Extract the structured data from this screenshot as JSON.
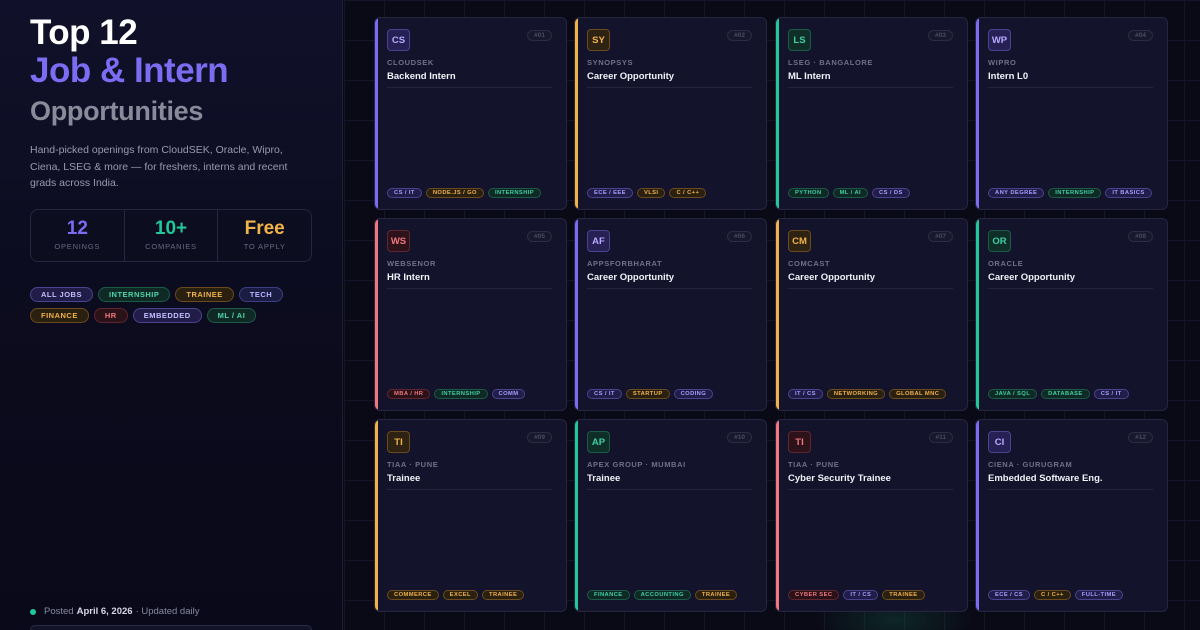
{
  "header": {
    "title_line1": "Top 12",
    "title_line2": "Job & Intern",
    "title_line3": "Opportunities",
    "description": "Hand-picked openings from CloudSEK, Oracle, Wipro, Ciena, LSEG & more — for freshers, interns and recent grads across India."
  },
  "stats": [
    {
      "value": "12",
      "label": "OPENINGS",
      "color": "#7c6cf2"
    },
    {
      "value": "10+",
      "label": "COMPANIES",
      "color": "#22c79a"
    },
    {
      "value": "Free",
      "label": "TO APPLY",
      "color": "#f2b24a"
    }
  ],
  "filters": [
    {
      "label": "ALL JOBS",
      "style": "purple"
    },
    {
      "label": "INTERNSHIP",
      "style": "green"
    },
    {
      "label": "TRAINEE",
      "style": "orange"
    },
    {
      "label": "TECH",
      "style": "blue"
    },
    {
      "label": "FINANCE",
      "style": "orange"
    },
    {
      "label": "HR",
      "style": "red"
    },
    {
      "label": "EMBEDDED",
      "style": "purple"
    },
    {
      "label": "ML / AI",
      "style": "green"
    }
  ],
  "footer": {
    "posted_prefix": "Posted",
    "posted_date": "April 6, 2026",
    "posted_suffix": "· Updated daily"
  },
  "colors": {
    "purple": "#7c6cf2",
    "orange": "#f2b24a",
    "green": "#22c79a",
    "red": "#f0787e"
  },
  "jobs": [
    {
      "badge": "CS",
      "num": "#01",
      "company": "CLOUDSEK",
      "role": "Backend Intern",
      "accent": "purple",
      "tags": [
        {
          "t": "CS / IT",
          "s": "purple"
        },
        {
          "t": "NODE.JS / GO",
          "s": "orange"
        },
        {
          "t": "INTERNSHIP",
          "s": "green"
        }
      ]
    },
    {
      "badge": "SY",
      "num": "#02",
      "company": "SYNOPSYS",
      "role": "Career Opportunity",
      "accent": "orange",
      "tags": [
        {
          "t": "ECE / EEE",
          "s": "purple"
        },
        {
          "t": "VLSI",
          "s": "orange"
        },
        {
          "t": "C / C++",
          "s": "orange"
        }
      ]
    },
    {
      "badge": "LS",
      "num": "#03",
      "company": "LSEG · BANGALORE",
      "role": "ML Intern",
      "accent": "green",
      "tags": [
        {
          "t": "PYTHON",
          "s": "green"
        },
        {
          "t": "ML / AI",
          "s": "green"
        },
        {
          "t": "CS / DS",
          "s": "purple"
        }
      ]
    },
    {
      "badge": "WP",
      "num": "#04",
      "company": "WIPRO",
      "role": "Intern L0",
      "accent": "purple",
      "tags": [
        {
          "t": "ANY DEGREE",
          "s": "purple"
        },
        {
          "t": "INTERNSHIP",
          "s": "green"
        },
        {
          "t": "IT BASICS",
          "s": "purple"
        }
      ]
    },
    {
      "badge": "WS",
      "num": "#05",
      "company": "WEBSENOR",
      "role": "HR Intern",
      "accent": "red",
      "tags": [
        {
          "t": "MBA / HR",
          "s": "red"
        },
        {
          "t": "INTERNSHIP",
          "s": "green"
        },
        {
          "t": "COMM",
          "s": "purple"
        }
      ]
    },
    {
      "badge": "AF",
      "num": "#06",
      "company": "APPSFORBHARAT",
      "role": "Career Opportunity",
      "accent": "purple",
      "tags": [
        {
          "t": "CS / IT",
          "s": "purple"
        },
        {
          "t": "STARTUP",
          "s": "orange"
        },
        {
          "t": "CODING",
          "s": "purple"
        }
      ]
    },
    {
      "badge": "CM",
      "num": "#07",
      "company": "COMCAST",
      "role": "Career Opportunity",
      "accent": "orange",
      "tags": [
        {
          "t": "IT / CS",
          "s": "purple"
        },
        {
          "t": "NETWORKING",
          "s": "orange"
        },
        {
          "t": "GLOBAL MNC",
          "s": "orange"
        }
      ]
    },
    {
      "badge": "OR",
      "num": "#08",
      "company": "ORACLE",
      "role": "Career Opportunity",
      "accent": "green",
      "tags": [
        {
          "t": "JAVA / SQL",
          "s": "green"
        },
        {
          "t": "DATABASE",
          "s": "green"
        },
        {
          "t": "CS / IT",
          "s": "purple"
        }
      ]
    },
    {
      "badge": "TI",
      "num": "#09",
      "company": "TIAA · PUNE",
      "role": "Trainee",
      "accent": "orange",
      "tags": [
        {
          "t": "COMMERCE",
          "s": "orange"
        },
        {
          "t": "EXCEL",
          "s": "orange"
        },
        {
          "t": "TRAINEE",
          "s": "orange"
        }
      ]
    },
    {
      "badge": "AP",
      "num": "#10",
      "company": "APEX GROUP · MUMBAI",
      "role": "Trainee",
      "accent": "green",
      "tags": [
        {
          "t": "FINANCE",
          "s": "green"
        },
        {
          "t": "ACCOUNTING",
          "s": "green"
        },
        {
          "t": "TRAINEE",
          "s": "orange"
        }
      ]
    },
    {
      "badge": "TI",
      "num": "#11",
      "company": "TIAA · PUNE",
      "role": "Cyber Security Trainee",
      "accent": "red",
      "tags": [
        {
          "t": "CYBER SEC",
          "s": "red"
        },
        {
          "t": "IT / CS",
          "s": "purple"
        },
        {
          "t": "TRAINEE",
          "s": "orange"
        }
      ]
    },
    {
      "badge": "CI",
      "num": "#12",
      "company": "CIENA · GURUGRAM",
      "role": "Embedded Software Eng.",
      "accent": "purple",
      "tags": [
        {
          "t": "ECE / CS",
          "s": "purple"
        },
        {
          "t": "C / C++",
          "s": "orange"
        },
        {
          "t": "FULL-TIME",
          "s": "purple"
        }
      ]
    }
  ]
}
